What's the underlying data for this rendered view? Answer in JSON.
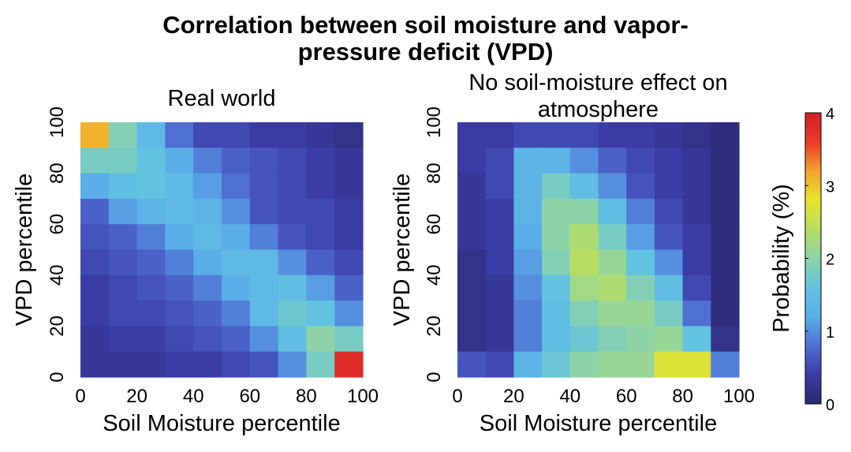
{
  "figure": {
    "title_line1": "Correlation between soil moisture and vapor-",
    "title_line2": "pressure deficit (VPD)"
  },
  "chart_data": [
    {
      "type": "heatmap",
      "title": "Real world",
      "xlabel": "Soil Moisture percentile",
      "ylabel": "VPD percentile",
      "xlim": [
        0,
        100
      ],
      "ylim": [
        0,
        100
      ],
      "xticks": [
        "0",
        "20",
        "40",
        "60",
        "80",
        "100"
      ],
      "yticks": [
        "0",
        "20",
        "40",
        "60",
        "80",
        "100"
      ],
      "x_bin_edges": [
        0,
        10,
        20,
        30,
        40,
        50,
        60,
        70,
        80,
        90,
        100
      ],
      "y_bin_edges": [
        0,
        10,
        20,
        30,
        40,
        50,
        60,
        70,
        80,
        90,
        100
      ],
      "value_unit": "Probability (%)",
      "values_rows_top_to_bottom": [
        [
          3.1,
          1.9,
          1.4,
          0.8,
          0.5,
          0.5,
          0.4,
          0.4,
          0.3,
          0.2
        ],
        [
          1.8,
          1.8,
          1.6,
          1.2,
          0.9,
          0.7,
          0.6,
          0.5,
          0.4,
          0.3
        ],
        [
          1.2,
          1.5,
          1.6,
          1.4,
          1.1,
          0.8,
          0.6,
          0.5,
          0.4,
          0.3
        ],
        [
          0.7,
          1.1,
          1.3,
          1.4,
          1.3,
          1.0,
          0.6,
          0.5,
          0.5,
          0.4
        ],
        [
          0.6,
          0.7,
          0.9,
          1.2,
          1.4,
          1.2,
          0.9,
          0.6,
          0.5,
          0.4
        ],
        [
          0.5,
          0.6,
          0.7,
          0.9,
          1.2,
          1.4,
          1.4,
          1.0,
          0.7,
          0.5
        ],
        [
          0.4,
          0.5,
          0.6,
          0.7,
          0.9,
          1.2,
          1.4,
          1.5,
          1.1,
          0.7
        ],
        [
          0.4,
          0.5,
          0.5,
          0.6,
          0.7,
          0.9,
          1.4,
          1.7,
          1.6,
          1.0
        ],
        [
          0.3,
          0.4,
          0.4,
          0.5,
          0.6,
          0.7,
          1.0,
          1.5,
          2.0,
          1.8
        ],
        [
          0.3,
          0.3,
          0.3,
          0.4,
          0.4,
          0.5,
          0.6,
          1.0,
          1.8,
          3.8
        ]
      ]
    },
    {
      "type": "heatmap",
      "title": "No soil-moisture effect on atmosphere",
      "title_lines": [
        "No soil-moisture effect on",
        "atmosphere"
      ],
      "xlabel": "Soil Moisture percentile",
      "ylabel": "VPD percentile",
      "xlim": [
        0,
        100
      ],
      "ylim": [
        0,
        100
      ],
      "xticks": [
        "0",
        "20",
        "40",
        "60",
        "80",
        "100"
      ],
      "yticks": [
        "0",
        "20",
        "40",
        "60",
        "80",
        "100"
      ],
      "x_bin_edges": [
        0,
        10,
        20,
        30,
        40,
        50,
        60,
        70,
        80,
        90,
        100
      ],
      "y_bin_edges": [
        0,
        10,
        20,
        30,
        40,
        50,
        60,
        70,
        80,
        90,
        100
      ],
      "value_unit": "Probability (%)",
      "values_rows_top_to_bottom": [
        [
          0.4,
          0.4,
          0.5,
          0.5,
          0.5,
          0.4,
          0.4,
          0.3,
          0.2,
          0.1
        ],
        [
          0.4,
          0.5,
          1.3,
          1.3,
          1.0,
          0.7,
          0.5,
          0.4,
          0.3,
          0.1
        ],
        [
          0.3,
          0.5,
          1.3,
          1.8,
          1.5,
          1.0,
          0.6,
          0.4,
          0.3,
          0.1
        ],
        [
          0.3,
          0.4,
          1.3,
          2.0,
          2.0,
          1.5,
          0.9,
          0.5,
          0.3,
          0.1
        ],
        [
          0.3,
          0.4,
          1.2,
          2.0,
          2.3,
          1.8,
          1.1,
          0.6,
          0.4,
          0.1
        ],
        [
          0.2,
          0.4,
          1.1,
          1.9,
          2.4,
          2.1,
          1.6,
          1.0,
          0.4,
          0.1
        ],
        [
          0.2,
          0.3,
          1.0,
          1.6,
          2.2,
          2.3,
          1.9,
          1.5,
          0.5,
          0.1
        ],
        [
          0.2,
          0.3,
          0.9,
          1.5,
          1.9,
          2.1,
          2.1,
          1.8,
          0.8,
          0.1
        ],
        [
          0.2,
          0.3,
          0.9,
          1.5,
          1.7,
          1.9,
          2.0,
          2.1,
          1.6,
          0.2
        ],
        [
          0.6,
          0.5,
          1.3,
          1.7,
          2.0,
          2.1,
          2.1,
          2.7,
          2.7,
          0.9
        ]
      ]
    }
  ],
  "colorbar": {
    "label": "Probability (%)",
    "min": 0,
    "max": 4,
    "ticks": [
      "0",
      "1",
      "2",
      "3",
      "4"
    ],
    "colormap": "parula-jet",
    "colors": [
      "#2a2a6e",
      "#3b3ba6",
      "#4f6fd3",
      "#5aaee8",
      "#61c3e0",
      "#8ed4a8",
      "#b6dd60",
      "#e9e32b",
      "#f3a22c",
      "#ea3b2a",
      "#d11f27"
    ]
  }
}
